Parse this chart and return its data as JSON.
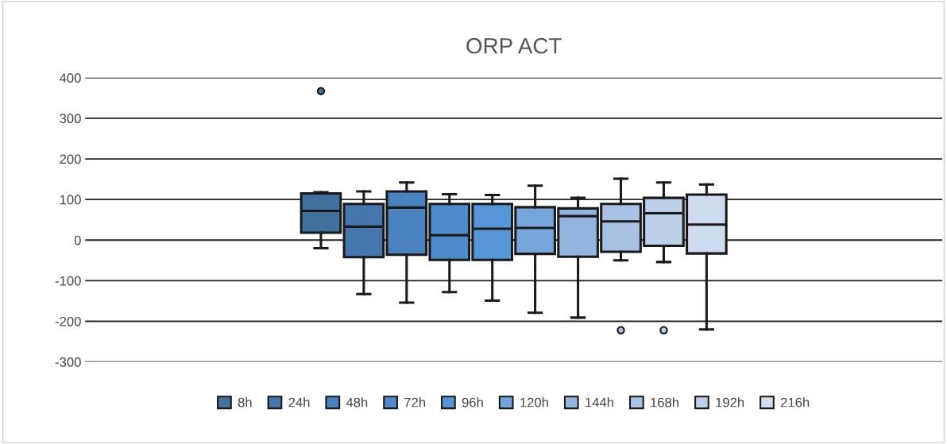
{
  "chart_data": {
    "type": "box",
    "title": "ORP ACT",
    "categories": [
      null
    ],
    "series": [
      {
        "name": "8h",
        "color": "#41719c",
        "boxes": [
          {
            "low": -20,
            "q1": 18,
            "median": 72,
            "q3": 115,
            "high": 118,
            "outliers": [
              367
            ]
          }
        ]
      },
      {
        "name": "24h",
        "color": "#4577ad",
        "boxes": [
          {
            "low": -133,
            "q1": -42,
            "median": 33,
            "q3": 89,
            "high": 120
          }
        ]
      },
      {
        "name": "48h",
        "color": "#4a82bf",
        "boxes": [
          {
            "low": -154,
            "q1": -36,
            "median": 80,
            "q3": 120,
            "high": 142
          }
        ]
      },
      {
        "name": "72h",
        "color": "#4e8bca",
        "boxes": [
          {
            "low": -128,
            "q1": -49,
            "median": 12,
            "q3": 89,
            "high": 113
          }
        ]
      },
      {
        "name": "96h",
        "color": "#5796d6",
        "boxes": [
          {
            "low": -149,
            "q1": -49,
            "median": 28,
            "q3": 89,
            "high": 111
          }
        ]
      },
      {
        "name": "120h",
        "color": "#75a5da",
        "boxes": [
          {
            "low": -179,
            "q1": -34,
            "median": 30,
            "q3": 81,
            "high": 134
          }
        ]
      },
      {
        "name": "144h",
        "color": "#93b4df",
        "boxes": [
          {
            "low": -191,
            "q1": -41,
            "median": 59,
            "q3": 78,
            "high": 104
          }
        ]
      },
      {
        "name": "168h",
        "color": "#a9c2e4",
        "boxes": [
          {
            "low": -50,
            "q1": -29,
            "median": 46,
            "q3": 89,
            "high": 151,
            "outliers": [
              -222
            ]
          }
        ]
      },
      {
        "name": "192h",
        "color": "#bdd0ea",
        "boxes": [
          {
            "low": -54,
            "q1": -14,
            "median": 66,
            "q3": 104,
            "high": 142,
            "outliers": [
              -222
            ]
          }
        ]
      },
      {
        "name": "216h",
        "color": "#cfdcef",
        "boxes": [
          {
            "low": -220,
            "q1": -33,
            "median": 38,
            "q3": 112,
            "high": 137
          }
        ]
      }
    ],
    "ylim": [
      -300,
      400
    ],
    "yticks": [
      -300,
      -200,
      -100,
      0,
      100,
      200,
      300,
      400
    ],
    "grid": "y",
    "legend": "bottom"
  }
}
